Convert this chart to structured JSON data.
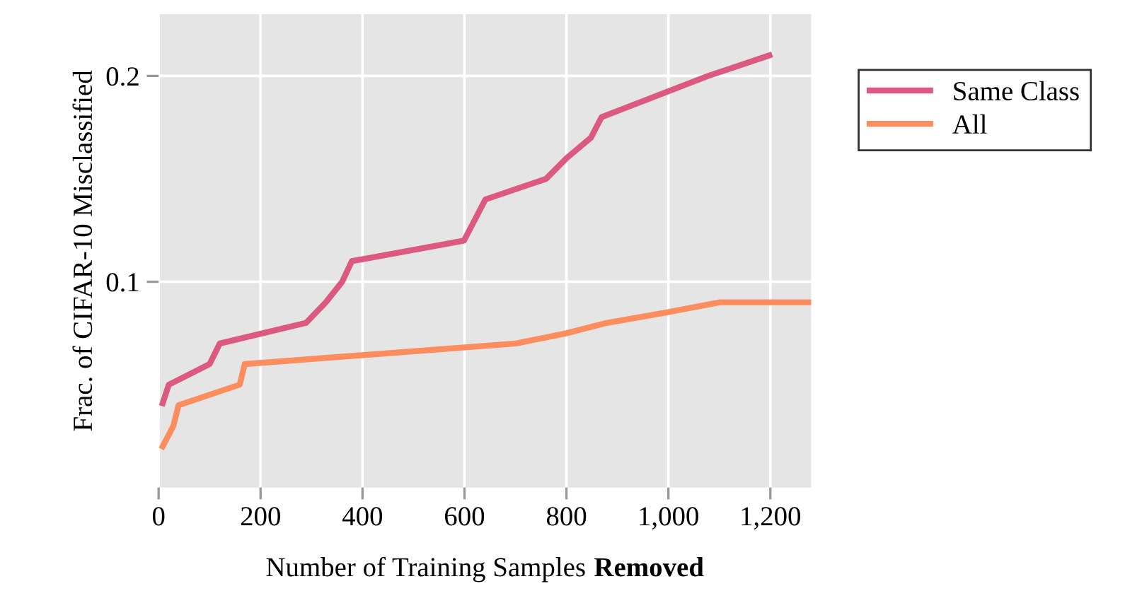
{
  "chart_data": {
    "type": "line",
    "xlabel": "Number of Training Samples Removed",
    "ylabel": "Frac. of CIFAR-10 Misclassified",
    "xlim": [
      0,
      1280
    ],
    "ylim": [
      0,
      0.23
    ],
    "xticks": [
      0,
      200,
      400,
      600,
      800,
      {
        "value": 1000,
        "label": "1,000"
      },
      {
        "value": 1200,
        "label": "1,200"
      }
    ],
    "yticks": [
      0.1,
      0.2
    ],
    "grid": true,
    "legend": "top right",
    "marker": "none",
    "line_style": "solid",
    "series": [
      {
        "name": "Same Class",
        "color": "#dc5a82",
        "x": [
          8,
          20,
          100,
          120,
          289,
          328,
          360,
          379,
          599,
          641,
          760,
          800,
          848,
          869,
          1078,
          1198
        ],
        "values": [
          0.041,
          0.05,
          0.06,
          0.07,
          0.08,
          0.09,
          0.1,
          0.11,
          0.12,
          0.14,
          0.15,
          0.16,
          0.17,
          0.18,
          0.2,
          0.21
        ]
      },
      {
        "name": "All",
        "color": "#fc8d5e",
        "x": [
          8,
          29,
          39,
          159,
          169,
          701,
          800,
          879,
          995,
          1101,
          1280
        ],
        "values": [
          0.02,
          0.03,
          0.04,
          0.05,
          0.06,
          0.07,
          0.075,
          0.08,
          0.085,
          0.09,
          0.09
        ]
      }
    ]
  }
}
